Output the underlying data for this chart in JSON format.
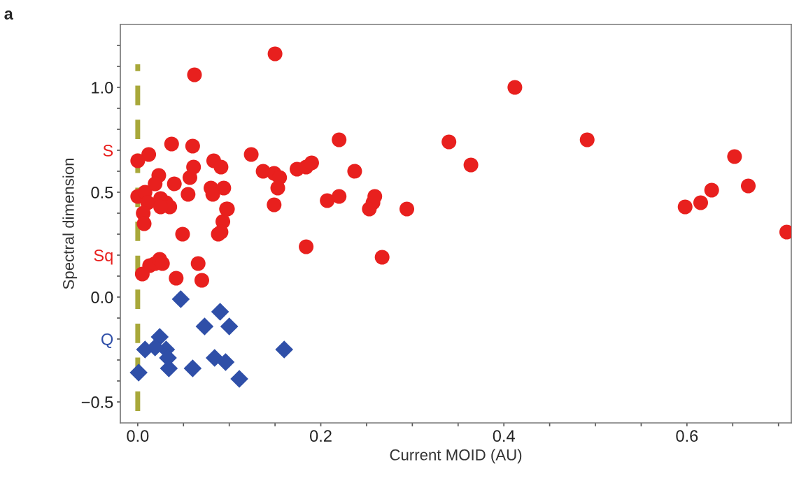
{
  "chart_data": {
    "type": "scatter",
    "xlabel": "Current MOID (AU)",
    "ylabel": "Spectral dimension",
    "annotations": [
      "a"
    ],
    "xlim": [
      -0.019,
      0.714
    ],
    "ylim": [
      -0.6,
      1.3
    ],
    "xticks": [
      {
        "value": 0.0,
        "label": "0.0"
      },
      {
        "value": 0.05,
        "label": null
      },
      {
        "value": 0.1,
        "label": null
      },
      {
        "value": 0.15,
        "label": null
      },
      0.2,
      {
        "value": 0.25,
        "label": null
      },
      {
        "value": 0.3,
        "label": null
      },
      {
        "value": 0.35,
        "label": null
      },
      0.4,
      {
        "value": 0.45,
        "label": null
      },
      {
        "value": 0.5,
        "label": null
      },
      {
        "value": 0.55,
        "label": null
      },
      0.6,
      {
        "value": 0.65,
        "label": null
      },
      {
        "value": 0.7,
        "label": null
      }
    ],
    "yticks": [
      {
        "value": -0.5,
        "label": "−0.5"
      },
      {
        "value": -0.4,
        "label": null
      },
      {
        "value": -0.3,
        "label": null
      },
      {
        "value": -0.2,
        "label": "Q"
      },
      {
        "value": -0.1,
        "label": null
      },
      {
        "value": 0.0,
        "label": "0.0"
      },
      {
        "value": 0.1,
        "label": null
      },
      {
        "value": 0.2,
        "label": "Sq"
      },
      {
        "value": 0.3,
        "label": null
      },
      {
        "value": 0.4,
        "label": null
      },
      0.5,
      {
        "value": 0.6,
        "label": null
      },
      {
        "value": 0.7,
        "label": "S"
      },
      {
        "value": 0.8,
        "label": null
      },
      {
        "value": 0.9,
        "label": null
      },
      {
        "value": 1.0,
        "label": "1.0"
      },
      {
        "value": 1.1,
        "label": null
      },
      {
        "value": 1.2,
        "label": null
      }
    ],
    "grid": false,
    "legend": false,
    "ref_lines": [
      {
        "axis": "x",
        "value": 0.0,
        "color": "#a8a83a",
        "line_style": "dashed"
      }
    ],
    "series": [
      {
        "color": "#e8201e",
        "marker": "circle",
        "x": [
          0.062,
          0.15,
          0.037,
          0.06,
          0.124,
          0.012,
          0.0,
          0.083,
          0.091,
          0.023,
          0.04,
          0.057,
          0.061,
          0.055,
          0.08,
          0.094,
          0.137,
          0.149,
          0.155,
          0.153,
          0.174,
          0.184,
          0.19,
          0.22,
          0.237,
          0.207,
          0.22,
          0.253,
          0.257,
          0.259,
          0.294,
          0.34,
          0.364,
          0.412,
          0.491,
          0.598,
          0.615,
          0.627,
          0.652,
          0.667,
          0.709,
          0.184,
          0.267,
          0.149,
          0.098,
          0.093,
          0.091,
          0.049,
          0.088,
          0.097,
          0.0,
          0.008,
          0.011,
          0.006,
          0.007,
          0.019,
          0.025,
          0.031,
          0.035,
          0.025,
          0.082,
          0.013,
          0.019,
          0.024,
          0.027,
          0.005,
          0.042,
          0.066,
          0.07
        ],
        "values": [
          1.06,
          1.16,
          0.73,
          0.72,
          0.68,
          0.68,
          0.65,
          0.65,
          0.62,
          0.58,
          0.54,
          0.57,
          0.62,
          0.49,
          0.52,
          0.52,
          0.6,
          0.59,
          0.57,
          0.52,
          0.61,
          0.62,
          0.64,
          0.75,
          0.6,
          0.46,
          0.48,
          0.42,
          0.45,
          0.48,
          0.42,
          0.74,
          0.63,
          1.0,
          0.75,
          0.43,
          0.45,
          0.51,
          0.67,
          0.53,
          0.31,
          0.24,
          0.19,
          0.44,
          0.42,
          0.36,
          0.31,
          0.3,
          0.3,
          0.42,
          0.48,
          0.5,
          0.45,
          0.4,
          0.35,
          0.54,
          0.47,
          0.45,
          0.43,
          0.43,
          0.49,
          0.15,
          0.16,
          0.18,
          0.16,
          0.11,
          0.09,
          0.16,
          0.08
        ]
      },
      {
        "color": "#2f4fa8",
        "marker": "diamond",
        "x": [
          0.047,
          0.073,
          0.09,
          0.1,
          0.16,
          0.084,
          0.096,
          0.111,
          0.06,
          0.034,
          0.001,
          0.014,
          0.024,
          0.008,
          0.031,
          0.033,
          0.019
        ],
        "values": [
          -0.01,
          -0.14,
          -0.07,
          -0.14,
          -0.25,
          -0.29,
          -0.31,
          -0.39,
          -0.34,
          -0.34,
          -0.36,
          null,
          -0.19,
          -0.25,
          -0.25,
          -0.29,
          -0.24
        ]
      }
    ]
  }
}
